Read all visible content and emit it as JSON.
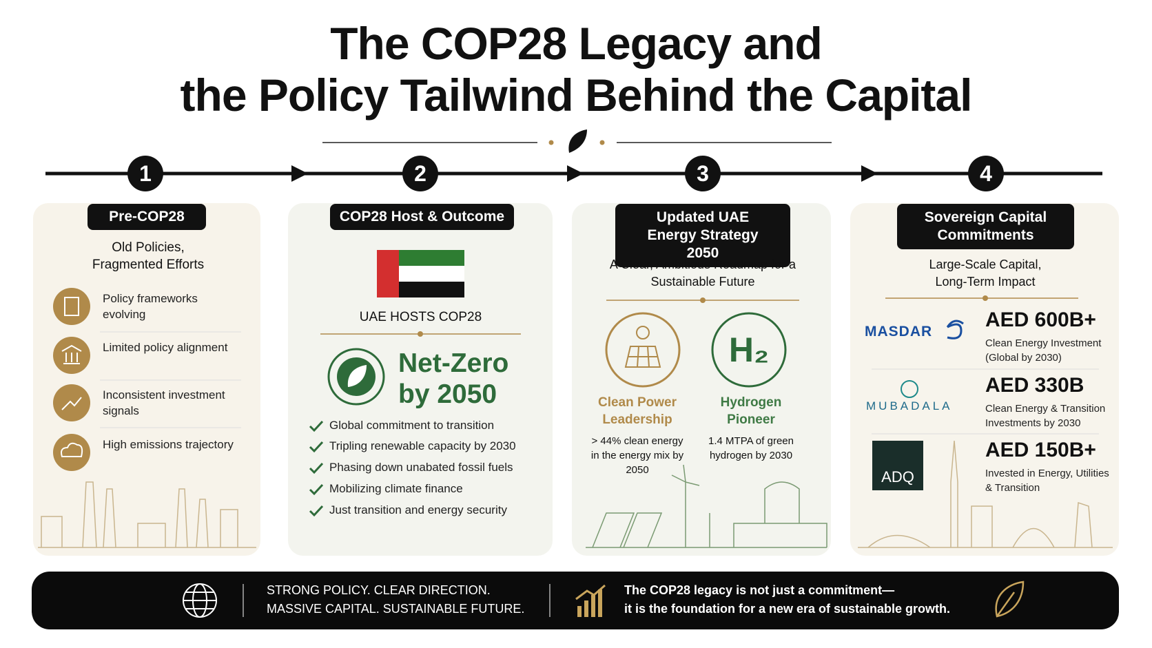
{
  "title": [
    "The COP28 Legacy and",
    "the Policy Tailwind Behind the Capital"
  ],
  "steps": [
    {
      "number": "1",
      "label": "Pre-COP28",
      "subtitle": "Old Policies, Fragmented Efforts",
      "items": [
        "Policy frameworks evolving",
        "Limited policy alignment",
        "Inconsistent investment signals",
        "High emissions trajectory"
      ]
    },
    {
      "number": "2",
      "label": "COP28 Host & Outcome",
      "flag_caption": "UAE HOSTS COP28",
      "headline": [
        "Net-Zero",
        "by 2050"
      ],
      "items": [
        "Global commitment to transition",
        "Tripling renewable capacity by 2030",
        "Phasing down unabated fossil fuels",
        "Mobilizing climate finance",
        "Just transition and energy security"
      ]
    },
    {
      "number": "3",
      "label": "Updated UAE Energy Strategy 2050",
      "subtitle": "A Clear, Ambitious Roadmap for a Sustainable Future",
      "pillars": [
        {
          "title": "Clean Power Leadership",
          "detail": "> 44% clean energy in the energy mix by 2050"
        },
        {
          "title": "Hydrogen Pioneer",
          "icon": "H₂",
          "detail": "1.4 MTPA of green hydrogen by 2030"
        }
      ]
    },
    {
      "number": "4",
      "label": "Sovereign Capital Commitments",
      "subtitle": "Large-Scale Capital, Long-Term Impact",
      "commitments": [
        {
          "entity": "MASDAR",
          "amount": "AED 600B+",
          "detail": "Clean Energy Investment (Global by 2030)"
        },
        {
          "entity": "MUBADALA",
          "amount": "AED 330B",
          "detail": "Clean Energy & Transition Investments by 2030"
        },
        {
          "entity": "ADQ",
          "amount": "AED 150B+",
          "detail": "Invested in Energy, Utilities & Transition"
        }
      ]
    }
  ],
  "footer": {
    "slogan": [
      "STRONG POLICY. CLEAR DIRECTION.",
      "MASSIVE CAPITAL. SUSTAINABLE FUTURE."
    ],
    "message": [
      "The COP28 legacy is not just a commitment—",
      "it is the foundation for a new era of sustainable growth."
    ]
  }
}
